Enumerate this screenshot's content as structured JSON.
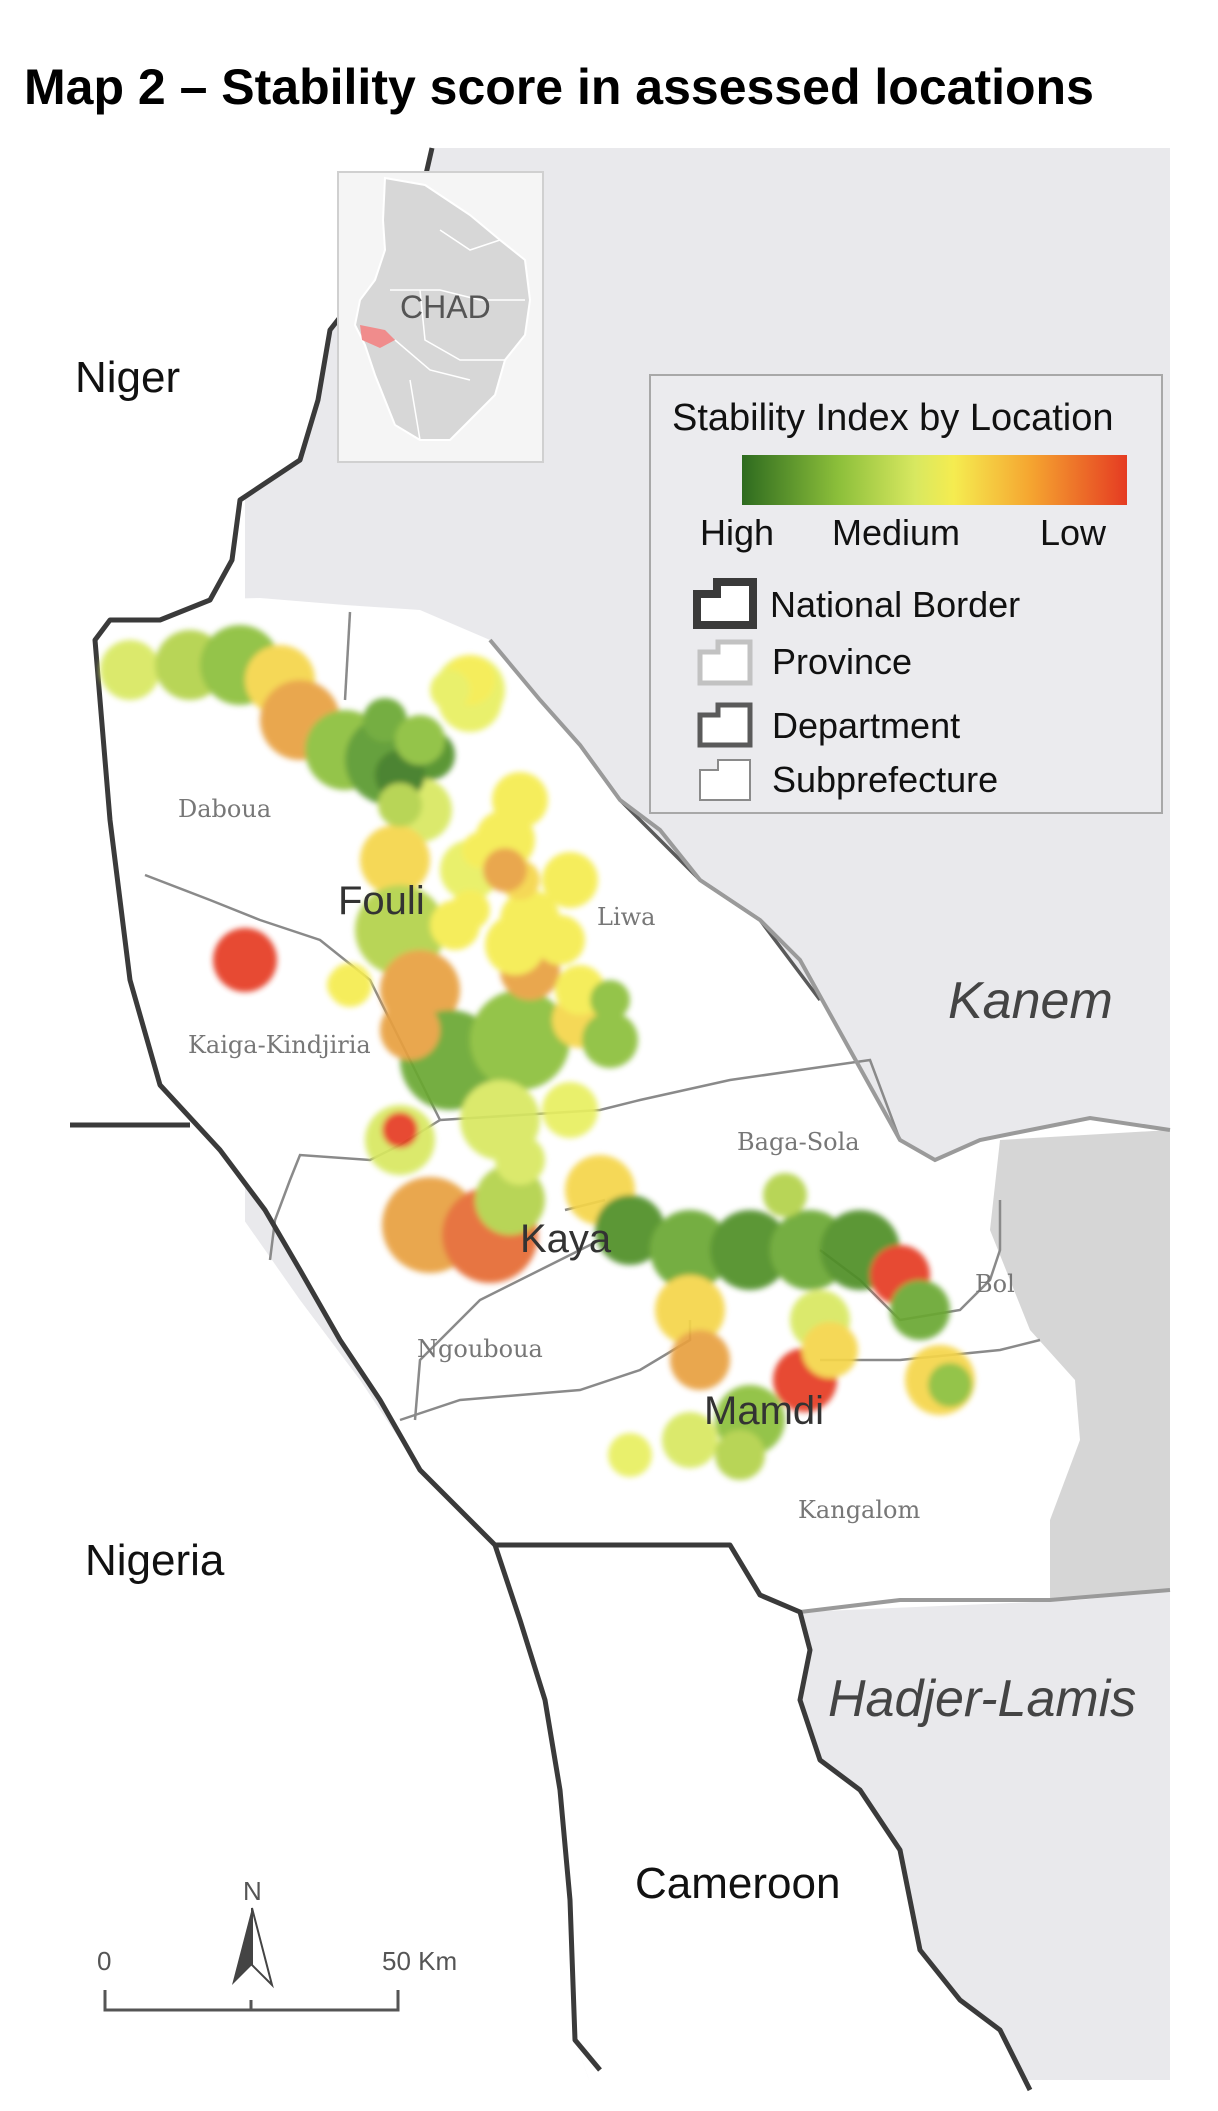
{
  "title": "Map 2 – Stability score in assessed locations",
  "countries": {
    "niger": "Niger",
    "nigeria": "Nigeria",
    "cameroon": "Cameroon"
  },
  "provinces": {
    "kanem": "Kanem",
    "hadjer_lamis": "Hadjer-Lamis"
  },
  "departments": {
    "fouli": "Fouli",
    "kaya": "Kaya",
    "mamdi": "Mamdi"
  },
  "subprefectures": {
    "daboua": "Daboua",
    "liwa": "Liwa",
    "kaiga": "Kaiga-Kindjiria",
    "baga_sola": "Baga-Sola",
    "bol": "Bol",
    "ngouboua": "Ngouboua",
    "kangalom": "Kangalom"
  },
  "inset": {
    "label": "CHAD"
  },
  "legend": {
    "title": "Stability Index by Location",
    "scale_labels": {
      "high": "High",
      "medium": "Medium",
      "low": "Low"
    },
    "colors": {
      "high": "#2e6b1f",
      "medium": "#f5ec50",
      "low": "#e53b22"
    },
    "items": [
      {
        "label": "National Border"
      },
      {
        "label": "Province"
      },
      {
        "label": "Department"
      },
      {
        "label": "Subprefecture"
      }
    ]
  },
  "north_arrow": {
    "label": "N"
  },
  "scale_bar": {
    "start": "0",
    "end": "50 Km"
  },
  "colors": {
    "land_other": "#e9e9ec",
    "land_bol": "#d6d6d6",
    "border": "#3a3a3a"
  }
}
